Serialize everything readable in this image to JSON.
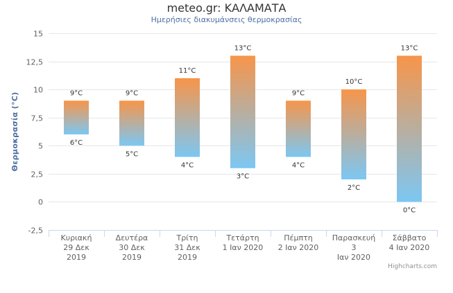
{
  "title": "meteo.gr: ΚΑΛΑΜΑΤΑ",
  "subtitle": "Ημερήσιες διακυμάνσεις θερμοκρασίας",
  "credits": "Highcharts.com",
  "colors": {
    "top": "#f7954a",
    "bottom": "#7cc7f3",
    "grid": "#e6e6e6",
    "axis": "#ccd6eb"
  },
  "chart_data": {
    "type": "bar",
    "subtype": "columnrange",
    "ylabel": "Θερμοκρασία (°C)",
    "ylim": [
      -2.5,
      15
    ],
    "yticks": [
      "-2,5",
      "0",
      "2,5",
      "5",
      "7,5",
      "10",
      "12,5",
      "15"
    ],
    "grid": true,
    "categories": [
      [
        "Κυριακή",
        "29 Δεκ",
        "2019"
      ],
      [
        "Δευτέρα",
        "30 Δεκ",
        "2019"
      ],
      [
        "Τρίτη",
        "31 Δεκ",
        "2019"
      ],
      [
        "Τετάρτη",
        "1 Ιαν 2020"
      ],
      [
        "Πέμπτη",
        "2 Ιαν 2020"
      ],
      [
        "Παρασκευή",
        "3",
        "Ιαν 2020"
      ],
      [
        "Σάββατο",
        "4 Ιαν 2020"
      ]
    ],
    "low": [
      6,
      5,
      4,
      3,
      4,
      2,
      0
    ],
    "high": [
      9,
      9,
      11,
      13,
      9,
      10,
      13
    ],
    "low_labels": [
      "6°C",
      "5°C",
      "4°C",
      "3°C",
      "4°C",
      "2°C",
      "0°C"
    ],
    "high_labels": [
      "9°C",
      "9°C",
      "11°C",
      "13°C",
      "9°C",
      "10°C",
      "13°C"
    ]
  }
}
